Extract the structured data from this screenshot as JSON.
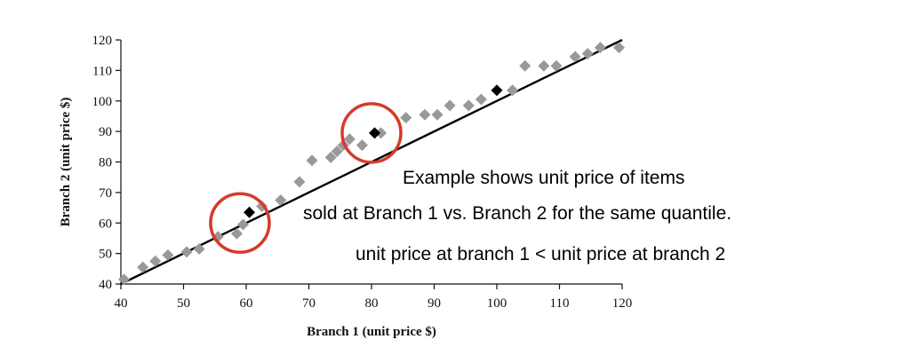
{
  "chart_data": {
    "type": "scatter",
    "xlabel": "Branch 1 (unit price $)",
    "ylabel": "Branch 2 (unit price $)",
    "xlim": [
      40,
      120
    ],
    "ylim": [
      40,
      120
    ],
    "xticks": [
      "40",
      "50",
      "60",
      "70",
      "80",
      "90",
      "100",
      "110",
      "120"
    ],
    "yticks": [
      "40",
      "50",
      "60",
      "70",
      "80",
      "90",
      "100",
      "110",
      "120"
    ],
    "grid": false,
    "reference_line": {
      "type": "y=x",
      "from": [
        40,
        40
      ],
      "to": [
        120,
        120
      ],
      "color": "#000000"
    },
    "series": [
      {
        "marker": "diamond",
        "color": "#999999",
        "points": [
          [
            40.5,
            41.5
          ],
          [
            43.5,
            45.5
          ],
          [
            45.5,
            47.5
          ],
          [
            47.5,
            49.5
          ],
          [
            50.5,
            50.5
          ],
          [
            52.5,
            51.5
          ],
          [
            55.5,
            55.5
          ],
          [
            58.5,
            56.5
          ],
          [
            59.5,
            59.5
          ],
          [
            62.5,
            65.5
          ],
          [
            65.5,
            67.5
          ],
          [
            68.5,
            73.5
          ],
          [
            70.5,
            80.5
          ],
          [
            73.5,
            81.5
          ],
          [
            74.5,
            83.5
          ],
          [
            75.5,
            85.5
          ],
          [
            76.5,
            87.5
          ],
          [
            78.5,
            85.5
          ],
          [
            81.5,
            89.5
          ],
          [
            85.5,
            94.5
          ],
          [
            88.5,
            95.5
          ],
          [
            90.5,
            95.5
          ],
          [
            92.5,
            98.5
          ],
          [
            95.5,
            98.5
          ],
          [
            97.5,
            100.5
          ],
          [
            102.5,
            103.5
          ],
          [
            104.5,
            111.5
          ],
          [
            107.5,
            111.5
          ],
          [
            109.5,
            111.5
          ],
          [
            112.5,
            114.5
          ],
          [
            114.5,
            115.5
          ],
          [
            116.5,
            117.5
          ],
          [
            119.5,
            117.5
          ]
        ]
      },
      {
        "marker": "diamond",
        "color": "#000000",
        "points": [
          [
            60.5,
            63.5
          ],
          [
            80.5,
            89.5
          ],
          [
            100,
            103.5
          ]
        ]
      }
    ],
    "highlight_circles": [
      {
        "center": [
          59,
          60
        ],
        "color": "#d63a2b"
      },
      {
        "center": [
          80,
          89.5
        ],
        "color": "#d63a2b"
      }
    ],
    "annotations": [
      "Example shows unit price of items",
      "sold at  Branch 1 vs. Branch 2 for the same quantile.",
      "unit price at branch 1 < unit price at branch 2"
    ]
  }
}
